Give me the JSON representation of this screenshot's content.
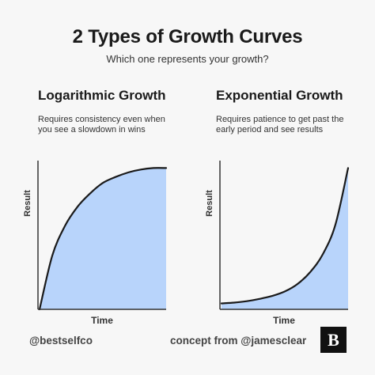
{
  "header": {
    "title": "2 Types of Growth Curves",
    "subtitle": "Which one represents your growth?"
  },
  "panels": [
    {
      "title": "Logarithmic Growth",
      "description_lines": [
        "Requires consistency even when",
        "you see a slowdown in wins"
      ]
    },
    {
      "title": "Exponential Growth",
      "description_lines": [
        "Requires patience to get past the",
        "early period and see results"
      ]
    }
  ],
  "footer": {
    "left": "@bestselfco",
    "right": "concept from @jamesclear"
  },
  "logo": {
    "letter": "B"
  },
  "colors": {
    "fill": "#b8d4fb",
    "line": "#1a1a1a",
    "axis": "#333333",
    "background": "#f7f7f7"
  },
  "chart_data": [
    {
      "type": "area",
      "title": "Logarithmic Growth",
      "xlabel": "Time",
      "ylabel": "Result",
      "xlim": [
        0,
        1
      ],
      "ylim": [
        0,
        1
      ],
      "grid": false,
      "x": [
        0,
        0.1,
        0.2,
        0.3,
        0.4,
        0.5,
        0.6,
        0.7,
        0.8,
        0.9,
        1.0
      ],
      "y": [
        0,
        0.36,
        0.56,
        0.69,
        0.78,
        0.85,
        0.89,
        0.92,
        0.94,
        0.95,
        0.95
      ]
    },
    {
      "type": "area",
      "title": "Exponential Growth",
      "xlabel": "Time",
      "ylabel": "Result",
      "xlim": [
        0,
        1
      ],
      "ylim": [
        0,
        1
      ],
      "grid": false,
      "x": [
        0,
        0.1,
        0.2,
        0.3,
        0.4,
        0.5,
        0.6,
        0.7,
        0.8,
        0.9,
        1.0
      ],
      "y": [
        0.04,
        0.045,
        0.055,
        0.07,
        0.09,
        0.12,
        0.17,
        0.25,
        0.37,
        0.57,
        0.95
      ]
    }
  ]
}
